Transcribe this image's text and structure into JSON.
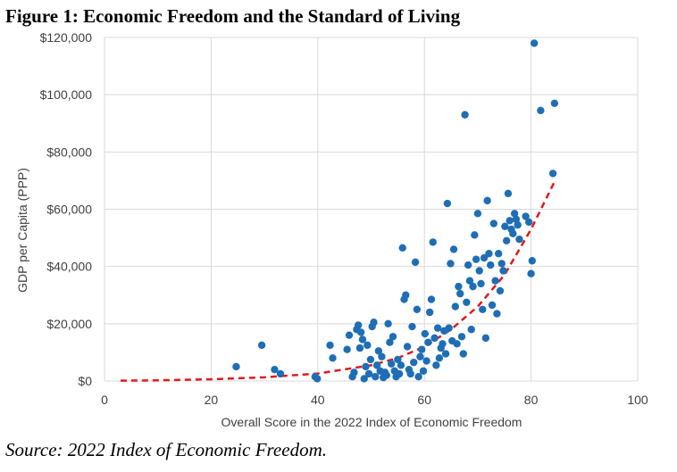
{
  "figure": {
    "title": "Figure 1: Economic Freedom and the Standard of Living",
    "source": "Source: 2022 Index of Economic Freedom."
  },
  "colors": {
    "points": "#1f6eb5",
    "trend": "#e0191e",
    "grid": "#d9d9d9",
    "text": "#404040"
  },
  "chart_data": {
    "type": "scatter",
    "title": "Figure 1: Economic Freedom and the Standard of Living",
    "xlabel": "Overall Score in the 2022 Index of Economic Freedom",
    "ylabel": "GDP per Capita (PPP)",
    "xlim": [
      0,
      100
    ],
    "ylim": [
      0,
      120000
    ],
    "x_ticks": [
      0,
      20,
      40,
      60,
      80,
      100
    ],
    "x_tick_labels": [
      "0",
      "20",
      "40",
      "60",
      "80",
      "100"
    ],
    "y_ticks": [
      0,
      20000,
      40000,
      60000,
      80000,
      100000,
      120000
    ],
    "y_tick_labels": [
      "$0",
      "$20,000",
      "$40,000",
      "$60,000",
      "$80,000",
      "$100,000",
      "$120,000"
    ],
    "grid": true,
    "legend": "none",
    "series": [
      {
        "values": [
          [
            24.7,
            5000
          ],
          [
            29.5,
            12500
          ],
          [
            31.9,
            4000
          ],
          [
            33.0,
            2500
          ],
          [
            39.5,
            1500
          ],
          [
            39.9,
            800
          ],
          [
            42.3,
            12500
          ],
          [
            42.8,
            8000
          ],
          [
            45.5,
            11000
          ],
          [
            45.9,
            16000
          ],
          [
            46.5,
            1500
          ],
          [
            46.8,
            3000
          ],
          [
            47.3,
            18000
          ],
          [
            47.6,
            19500
          ],
          [
            47.9,
            11500
          ],
          [
            48.1,
            17000
          ],
          [
            48.4,
            14500
          ],
          [
            48.7,
            800
          ],
          [
            49.0,
            5000
          ],
          [
            49.3,
            12500
          ],
          [
            49.6,
            2500
          ],
          [
            49.9,
            7500
          ],
          [
            50.2,
            19000
          ],
          [
            50.5,
            20500
          ],
          [
            50.8,
            1500
          ],
          [
            51.1,
            5500
          ],
          [
            51.4,
            10500
          ],
          [
            51.7,
            3500
          ],
          [
            52.0,
            8500
          ],
          [
            52.3,
            1200
          ],
          [
            52.6,
            3000
          ],
          [
            52.9,
            2000
          ],
          [
            53.2,
            20000
          ],
          [
            53.5,
            13500
          ],
          [
            53.8,
            6000
          ],
          [
            54.1,
            15500
          ],
          [
            54.4,
            3500
          ],
          [
            54.7,
            1500
          ],
          [
            55.0,
            7500
          ],
          [
            55.3,
            2500
          ],
          [
            55.6,
            5500
          ],
          [
            55.9,
            46500
          ],
          [
            56.2,
            28500
          ],
          [
            56.5,
            30000
          ],
          [
            56.8,
            12000
          ],
          [
            57.1,
            4000
          ],
          [
            57.4,
            2500
          ],
          [
            57.7,
            19000
          ],
          [
            58.0,
            6500
          ],
          [
            58.3,
            41500
          ],
          [
            58.6,
            25000
          ],
          [
            58.9,
            1500
          ],
          [
            59.2,
            8500
          ],
          [
            59.5,
            11000
          ],
          [
            59.8,
            3500
          ],
          [
            60.1,
            16500
          ],
          [
            60.4,
            7000
          ],
          [
            60.7,
            13500
          ],
          [
            61.0,
            24000
          ],
          [
            61.3,
            28500
          ],
          [
            61.6,
            48500
          ],
          [
            61.9,
            15000
          ],
          [
            62.2,
            5500
          ],
          [
            62.5,
            18500
          ],
          [
            62.8,
            8000
          ],
          [
            63.1,
            11500
          ],
          [
            63.4,
            13000
          ],
          [
            63.7,
            17500
          ],
          [
            64.0,
            9500
          ],
          [
            64.3,
            62000
          ],
          [
            64.6,
            18500
          ],
          [
            64.9,
            41000
          ],
          [
            65.2,
            14000
          ],
          [
            65.5,
            46000
          ],
          [
            65.8,
            26000
          ],
          [
            66.1,
            13000
          ],
          [
            66.4,
            33000
          ],
          [
            66.7,
            30500
          ],
          [
            67.0,
            15500
          ],
          [
            67.3,
            9500
          ],
          [
            67.6,
            93000
          ],
          [
            67.9,
            27500
          ],
          [
            68.2,
            40500
          ],
          [
            68.5,
            35000
          ],
          [
            68.8,
            18000
          ],
          [
            69.1,
            33000
          ],
          [
            69.4,
            51000
          ],
          [
            69.7,
            42500
          ],
          [
            70.0,
            58500
          ],
          [
            70.3,
            38500
          ],
          [
            70.6,
            34000
          ],
          [
            70.9,
            25000
          ],
          [
            71.2,
            43000
          ],
          [
            71.5,
            15000
          ],
          [
            71.8,
            63000
          ],
          [
            72.1,
            44500
          ],
          [
            72.4,
            40500
          ],
          [
            72.7,
            26500
          ],
          [
            73.0,
            55000
          ],
          [
            73.3,
            35000
          ],
          [
            73.6,
            23500
          ],
          [
            73.9,
            44500
          ],
          [
            74.2,
            31500
          ],
          [
            74.5,
            41000
          ],
          [
            74.8,
            38500
          ],
          [
            75.1,
            54000
          ],
          [
            75.4,
            49000
          ],
          [
            75.7,
            65500
          ],
          [
            76.0,
            56000
          ],
          [
            76.3,
            53000
          ],
          [
            76.6,
            51500
          ],
          [
            76.9,
            58500
          ],
          [
            77.2,
            56500
          ],
          [
            77.5,
            54500
          ],
          [
            77.8,
            49500
          ],
          [
            79.0,
            57500
          ],
          [
            79.6,
            55500
          ],
          [
            80.0,
            37500
          ],
          [
            80.2,
            42000
          ],
          [
            80.6,
            118000
          ],
          [
            81.8,
            94500
          ],
          [
            84.1,
            72500
          ],
          [
            84.4,
            97000
          ]
        ]
      }
    ],
    "trendline": {
      "type": "exponential",
      "style": "dashed",
      "x": [
        3,
        10,
        20,
        30,
        40,
        50,
        55,
        60,
        65,
        70,
        75,
        80,
        84.5
      ],
      "y": [
        100,
        230,
        600,
        1300,
        2600,
        5500,
        8000,
        12000,
        18000,
        26000,
        37000,
        53000,
        70000
      ]
    }
  }
}
